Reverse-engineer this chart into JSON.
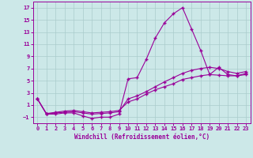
{
  "xlabel": "Windchill (Refroidissement éolien,°C)",
  "background_color": "#cce8e8",
  "grid_color": "#aacccc",
  "line_color": "#990099",
  "xlim": [
    -0.5,
    23.5
  ],
  "ylim": [
    -2,
    18
  ],
  "xticks": [
    0,
    1,
    2,
    3,
    4,
    5,
    6,
    7,
    8,
    9,
    10,
    11,
    12,
    13,
    14,
    15,
    16,
    17,
    18,
    19,
    20,
    21,
    22,
    23
  ],
  "yticks": [
    -1,
    1,
    3,
    5,
    7,
    9,
    11,
    13,
    15,
    17
  ],
  "series1_x": [
    0,
    1,
    2,
    3,
    4,
    5,
    6,
    7,
    8,
    9,
    10,
    11,
    12,
    13,
    14,
    15,
    16,
    17,
    18,
    19,
    20,
    21,
    22,
    23
  ],
  "series1_y": [
    2.0,
    -0.5,
    -0.5,
    -0.3,
    -0.3,
    -0.8,
    -1.2,
    -1.0,
    -1.0,
    -0.5,
    5.3,
    5.5,
    8.5,
    12.0,
    14.5,
    16.0,
    17.0,
    13.5,
    10.0,
    6.0,
    7.2,
    6.0,
    5.8,
    6.2
  ],
  "series2_x": [
    0,
    1,
    2,
    3,
    4,
    5,
    6,
    7,
    8,
    9,
    10,
    11,
    12,
    13,
    14,
    15,
    16,
    17,
    18,
    19,
    20,
    21,
    22,
    23
  ],
  "series2_y": [
    2.0,
    -0.5,
    -0.3,
    -0.2,
    -0.1,
    -0.3,
    -0.5,
    -0.4,
    -0.3,
    -0.1,
    2.0,
    2.5,
    3.2,
    4.0,
    4.8,
    5.5,
    6.2,
    6.7,
    7.0,
    7.2,
    7.0,
    6.5,
    6.2,
    6.5
  ],
  "series3_x": [
    0,
    1,
    2,
    3,
    4,
    5,
    6,
    7,
    8,
    9,
    10,
    11,
    12,
    13,
    14,
    15,
    16,
    17,
    18,
    19,
    20,
    21,
    22,
    23
  ],
  "series3_y": [
    2.0,
    -0.4,
    -0.2,
    0.0,
    0.1,
    -0.1,
    -0.3,
    -0.2,
    -0.1,
    0.1,
    1.5,
    2.0,
    2.8,
    3.5,
    4.0,
    4.5,
    5.2,
    5.5,
    5.8,
    6.0,
    5.9,
    5.8,
    5.8,
    6.0
  ]
}
